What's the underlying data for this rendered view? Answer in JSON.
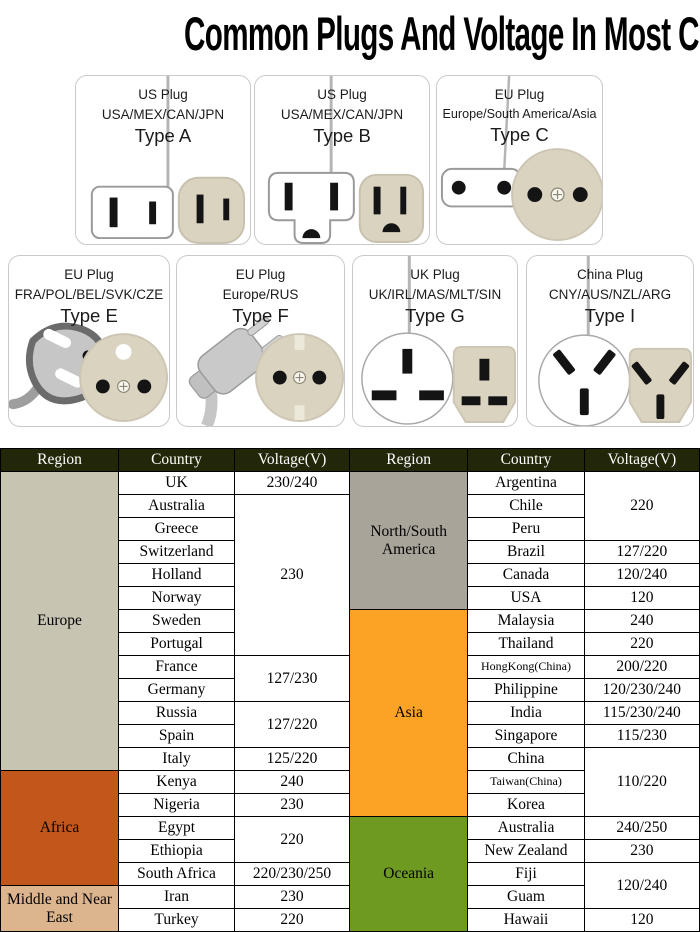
{
  "title": "Common Plugs And Voltage In Most Countries",
  "cards": [
    {
      "plug_name": "US Plug",
      "countries": "USA/MEX/CAN/JPN",
      "type": "Type A"
    },
    {
      "plug_name": "US Plug",
      "countries": "USA/MEX/CAN/JPN",
      "type": "Type B"
    },
    {
      "plug_name": "EU Plug",
      "countries": "Europe/South America/Asia",
      "type": "Type C"
    },
    {
      "plug_name": "EU Plug",
      "countries": "FRA/POL/BEL/SVK/CZE",
      "type": "Type E"
    },
    {
      "plug_name": "EU Plug",
      "countries": "Europe/RUS",
      "type": "Type F"
    },
    {
      "plug_name": "UK Plug",
      "countries": "UK/IRL/MAS/MLT/SIN",
      "type": "Type G"
    },
    {
      "plug_name": "China Plug",
      "countries": "CNY/AUS/NZL/ARG",
      "type": "Type I"
    }
  ],
  "colors": {
    "header_bg": "#212708",
    "europe": "#c8c4b2",
    "africa": "#c2571b",
    "middle_near_east": "#dcb58f",
    "ns_america": "#a9a49a",
    "asia": "#fca325",
    "oceania": "#6f9a22",
    "socket_beige": "#d9d3c0"
  },
  "voltage_table": {
    "headers": [
      "Region",
      "Country",
      "Voltage(V)"
    ],
    "left": [
      {
        "name": "Europe",
        "color": "#c8c4b2",
        "rows": [
          {
            "country": "UK",
            "voltage": "230/240"
          },
          {
            "country": "Australia",
            "voltage": "230",
            "vspan": 7
          },
          {
            "country": "Greece"
          },
          {
            "country": "Switzerland"
          },
          {
            "country": "Holland"
          },
          {
            "country": "Norway"
          },
          {
            "country": "Sweden"
          },
          {
            "country": "Portugal"
          },
          {
            "country": "France",
            "voltage": "127/230",
            "vspan": 2
          },
          {
            "country": "Germany"
          },
          {
            "country": "Russia",
            "voltage": "127/220",
            "vspan": 2
          },
          {
            "country": "Spain"
          },
          {
            "country": "Italy",
            "voltage": "125/220"
          }
        ]
      },
      {
        "name": "Africa",
        "color": "#c2571b",
        "rows": [
          {
            "country": "Kenya",
            "voltage": "240"
          },
          {
            "country": "Nigeria",
            "voltage": "230"
          },
          {
            "country": "Egypt",
            "voltage": "220",
            "vspan": 2
          },
          {
            "country": "Ethiopia"
          },
          {
            "country": "South Africa",
            "voltage": "220/230/250"
          }
        ]
      },
      {
        "name": "Middle and Near East",
        "color": "#dcb58f",
        "rows": [
          {
            "country": "Iran",
            "voltage": "230"
          },
          {
            "country": "Turkey",
            "voltage": "220"
          }
        ]
      }
    ],
    "right": [
      {
        "name": "North/South America",
        "color": "#a9a49a",
        "rows": [
          {
            "country": "Argentina",
            "voltage": "220",
            "vspan": 3
          },
          {
            "country": "Chile"
          },
          {
            "country": "Peru"
          },
          {
            "country": "Brazil",
            "voltage": "127/220"
          },
          {
            "country": "Canada",
            "voltage": "120/240"
          },
          {
            "country": "USA",
            "voltage": "120"
          }
        ]
      },
      {
        "name": "Asia",
        "color": "#fca325",
        "rows": [
          {
            "country": "Malaysia",
            "voltage": "240"
          },
          {
            "country": "Thailand",
            "voltage": "220"
          },
          {
            "country": "HongKong(China)",
            "voltage": "200/220",
            "small": true
          },
          {
            "country": "Philippine",
            "voltage": "120/230/240"
          },
          {
            "country": "India",
            "voltage": "115/230/240"
          },
          {
            "country": "Singapore",
            "voltage": "115/230"
          },
          {
            "country": "China",
            "voltage": "110/220",
            "vspan": 3
          },
          {
            "country": "Taiwan(China)",
            "small": true
          },
          {
            "country": "Korea"
          }
        ]
      },
      {
        "name": "Oceania",
        "color": "#6f9a22",
        "rows": [
          {
            "country": "Australia",
            "voltage": "240/250"
          },
          {
            "country": "New Zealand",
            "voltage": "230"
          },
          {
            "country": "Fiji",
            "voltage": "120/240",
            "vspan": 2
          },
          {
            "country": "Guam"
          },
          {
            "country": "Hawaii",
            "voltage": "120"
          }
        ]
      }
    ]
  }
}
